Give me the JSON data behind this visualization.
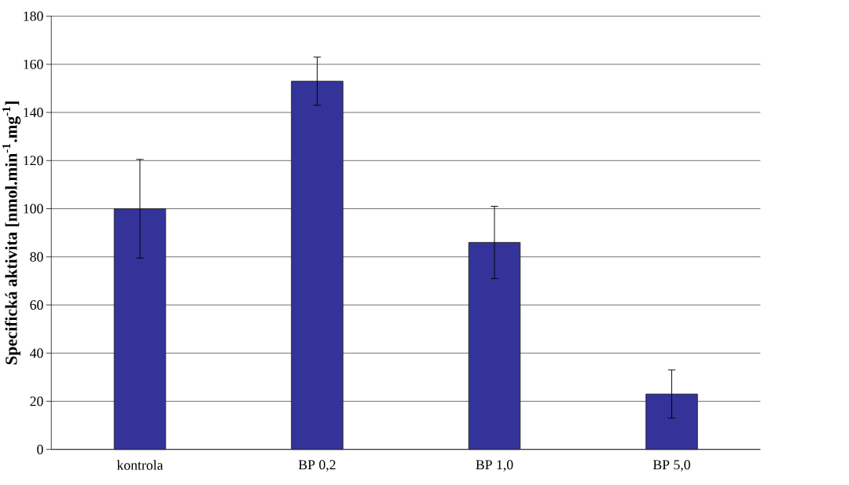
{
  "chart_data": {
    "type": "bar",
    "ylabel": "Specifická aktivita [nmol.min$^{-1}$.mg$^{-1}$]",
    "categories": [
      "kontrola",
      "BP 0,2",
      "BP 1,0",
      "BP 5,0"
    ],
    "values": [
      100,
      153,
      86,
      23
    ],
    "errors": [
      20.5,
      10,
      15,
      10
    ],
    "color": "#333399",
    "ylim": [
      0,
      180
    ],
    "yticks": [
      0,
      20,
      40,
      60,
      80,
      100,
      120,
      140,
      160,
      180
    ],
    "grid": "y"
  }
}
